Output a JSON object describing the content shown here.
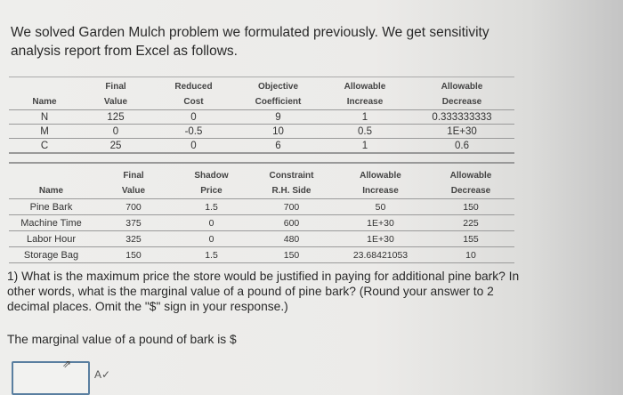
{
  "intro": "We solved Garden Mulch problem we formulated previously. We get sensitivity analysis report from Excel as follows.",
  "variable_cells": {
    "headers": [
      [
        "",
        "Name"
      ],
      [
        "Final",
        "Value"
      ],
      [
        "Reduced",
        "Cost"
      ],
      [
        "Objective",
        "Coefficient"
      ],
      [
        "Allowable",
        "Increase"
      ],
      [
        "Allowable",
        "Decrease"
      ]
    ],
    "rows": [
      [
        "N",
        "125",
        "0",
        "9",
        "1",
        "0.333333333"
      ],
      [
        "M",
        "0",
        "-0.5",
        "10",
        "0.5",
        "1E+30"
      ],
      [
        "C",
        "25",
        "0",
        "6",
        "1",
        "0.6"
      ]
    ]
  },
  "constraints": {
    "headers": [
      [
        "",
        "Name"
      ],
      [
        "Final",
        "Value"
      ],
      [
        "Shadow",
        "Price"
      ],
      [
        "Constraint",
        "R.H. Side"
      ],
      [
        "Allowable",
        "Increase"
      ],
      [
        "Allowable",
        "Decrease"
      ]
    ],
    "rows": [
      [
        "Pine Bark",
        "700",
        "1.5",
        "700",
        "50",
        "150"
      ],
      [
        "Machine Time",
        "375",
        "0",
        "600",
        "1E+30",
        "225"
      ],
      [
        "Labor Hour",
        "325",
        "0",
        "480",
        "1E+30",
        "155"
      ],
      [
        "Storage Bag",
        "150",
        "1.5",
        "150",
        "23.68421053",
        "10"
      ]
    ]
  },
  "question": "1) What is the maximum price the store would be justified in paying for additional pine bark? In other words, what is the marginal value of a pound of pine bark? (Round your answer to 2 decimal places. Omit the \"$\" sign in your response.)",
  "answer_prompt": "The marginal value of a pound of bark is  $",
  "answer_value": "",
  "icons": {
    "spellcheck": "spellcheck-icon",
    "cursor": "mouse-cursor-icon"
  }
}
